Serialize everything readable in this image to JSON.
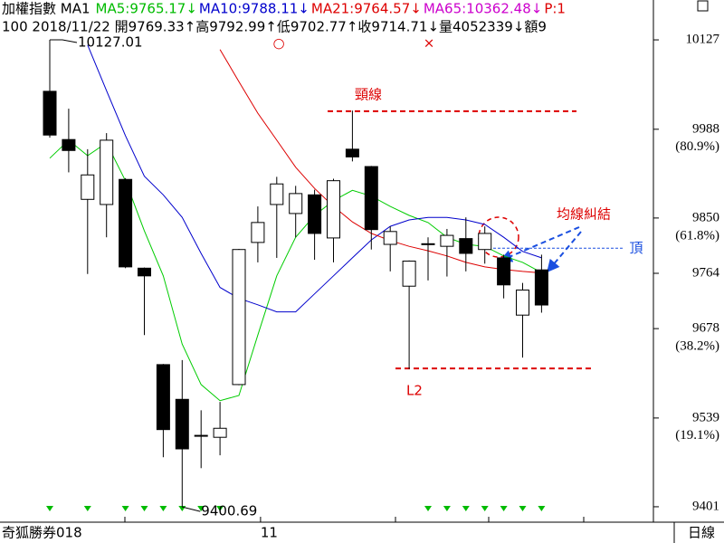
{
  "chart_data": {
    "type": "candlestick",
    "header": {
      "title": "加權指數 MA1",
      "items": [
        {
          "label": "MA5:9765.17↓",
          "color": "#00bb00"
        },
        {
          "label": "MA10:9788.11↓",
          "color": "#0000cc"
        },
        {
          "label": "MA21:9764.57↓",
          "color": "#dd0000"
        },
        {
          "label": "MA65:10362.48↓",
          "color": "#cc00cc"
        },
        {
          "label": "P:1",
          "color": "#dd0000"
        }
      ],
      "info": "100 2018/11/22 開9769.33↑高9792.99↑低9702.77↑收9714.71↓量4052339↓額9"
    },
    "categories": [
      null,
      null,
      null,
      null,
      null,
      null,
      null,
      null,
      null,
      null,
      null,
      "11",
      null,
      null,
      null,
      null,
      null,
      null,
      null,
      null,
      null,
      null,
      null,
      null,
      null,
      null,
      null
    ],
    "open": [
      10047,
      9972,
      9879,
      9871,
      9910,
      9772,
      9622,
      9568,
      9512,
      9509,
      9591,
      9812,
      9871,
      9857,
      9886,
      9819,
      9957,
      9930,
      9809,
      9744,
      9810,
      9806,
      9818,
      9801,
      9788,
      9699,
      9769.33
    ],
    "high": [
      10127.01,
      10020,
      9957,
      9982,
      9912,
      9773,
      9623,
      9629,
      9551,
      9564,
      9802,
      9868,
      9914,
      9900,
      9894,
      9911,
      10017,
      9931,
      9837,
      9784,
      9820,
      9833,
      9851,
      9837,
      9793,
      9749,
      9792.99
    ],
    "low": [
      9975,
      9921,
      9763,
      9820,
      9772,
      9668,
      9478,
      9400.69,
      9461,
      9481,
      9590,
      9781,
      9788,
      9820,
      9785,
      9781,
      9938,
      9801,
      9767,
      9615,
      9753,
      9759,
      9767,
      9779,
      9725,
      9633,
      9702.77
    ],
    "close": [
      9979,
      9955,
      9917,
      9971,
      9774,
      9760,
      9521,
      9491,
      9511,
      9523,
      9801,
      9843,
      9903,
      9888,
      9826,
      9908,
      9945,
      9832,
      9829,
      9783,
      9809,
      9823,
      9795,
      9826,
      9746,
      9738,
      9714.71
    ],
    "series": [
      {
        "name": "MA5",
        "color": "#00cc00",
        "values": [
          9943,
          9971,
          9947,
          9967,
          9908,
          9830,
          9760,
          9654,
          9591,
          9566,
          9574,
          9668,
          9760,
          9820,
          9854,
          9877,
          9893,
          9884,
          9868,
          9854,
          9843,
          9820,
          9809,
          9806,
          9791,
          9781,
          9765.17
        ]
      },
      {
        "name": "MA10",
        "color": "#0000cc",
        "values": [
          null,
          null,
          10119,
          10048,
          9978,
          9915,
          9886,
          9851,
          9795,
          9742,
          9725,
          9715,
          9704,
          9704,
          9732,
          9760,
          9788,
          9816,
          9837,
          9847,
          9851,
          9851,
          9847,
          9840,
          9820,
          9798,
          9788.11
        ]
      },
      {
        "name": "MA21",
        "color": "#dd0000",
        "values": [
          null,
          null,
          null,
          null,
          null,
          null,
          null,
          null,
          null,
          10112,
          10062,
          10013,
          9971,
          9929,
          9896,
          9868,
          9844,
          9826,
          9815,
          9806,
          9799,
          9791,
          9781,
          9774,
          9770,
          9767,
          9764.57
        ]
      }
    ],
    "buy_signals": [
      true,
      false,
      true,
      false,
      true,
      true,
      true,
      true,
      true,
      true,
      false,
      false,
      false,
      false,
      false,
      false,
      false,
      false,
      false,
      false,
      true,
      true,
      true,
      true,
      true,
      true,
      true
    ],
    "ylim": [
      9377,
      10189
    ],
    "yticks": [
      10127,
      9988,
      9850,
      9764,
      9678,
      9539,
      9401
    ],
    "fib_levels": [
      {
        "value": 80.9,
        "label": "(80.9%)"
      },
      {
        "value": 61.8,
        "label": "(61.8%)"
      },
      {
        "value": 38.2,
        "label": "(38.2%)"
      },
      {
        "value": 19.1,
        "label": "(19.1%)"
      }
    ],
    "annotations": {
      "neckline": {
        "label": "頸線",
        "value": 10016
      },
      "support": {
        "label": "L2",
        "value": 9616
      },
      "top": {
        "label": "頂",
        "value": 9803
      },
      "tangle": {
        "label": "均線糾結"
      },
      "markers": [
        "○",
        "×"
      ]
    },
    "footer": {
      "left": "奇狐勝券018",
      "right": "日線"
    }
  }
}
